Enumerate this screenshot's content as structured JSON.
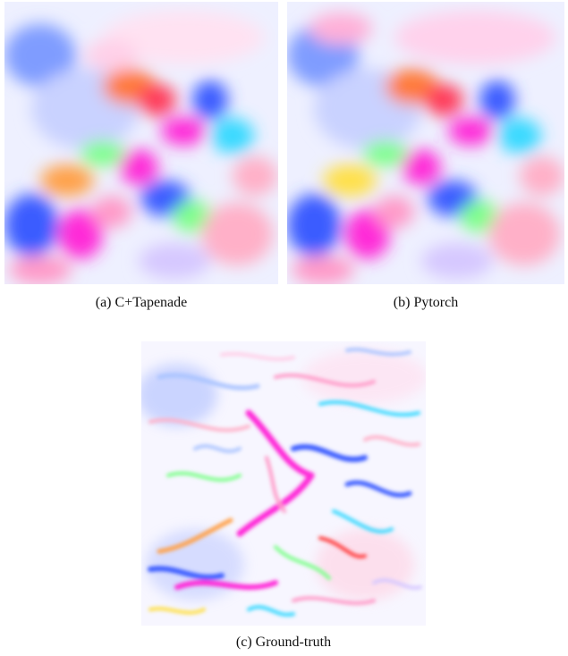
{
  "figure": {
    "panels": [
      {
        "id": "a",
        "caption": "(a) C+Tapenade",
        "image": "optical-flow-field-c-tapenade"
      },
      {
        "id": "b",
        "caption": "(b) Pytorch",
        "image": "optical-flow-field-pytorch"
      },
      {
        "id": "c",
        "caption": "(c) Ground-truth",
        "image": "optical-flow-field-ground-truth"
      }
    ],
    "palette": {
      "background": "#ffffff",
      "blue": "#3b5bff",
      "light_blue": "#aac4ff",
      "magenta": "#ff2ad8",
      "pink": "#ff9ac8",
      "red": "#ff3a3a",
      "orange": "#ffa14a",
      "yellow": "#ffe04a",
      "green": "#7dff8a",
      "cyan": "#37d9ff",
      "lavender": "#d6c8ff"
    }
  }
}
